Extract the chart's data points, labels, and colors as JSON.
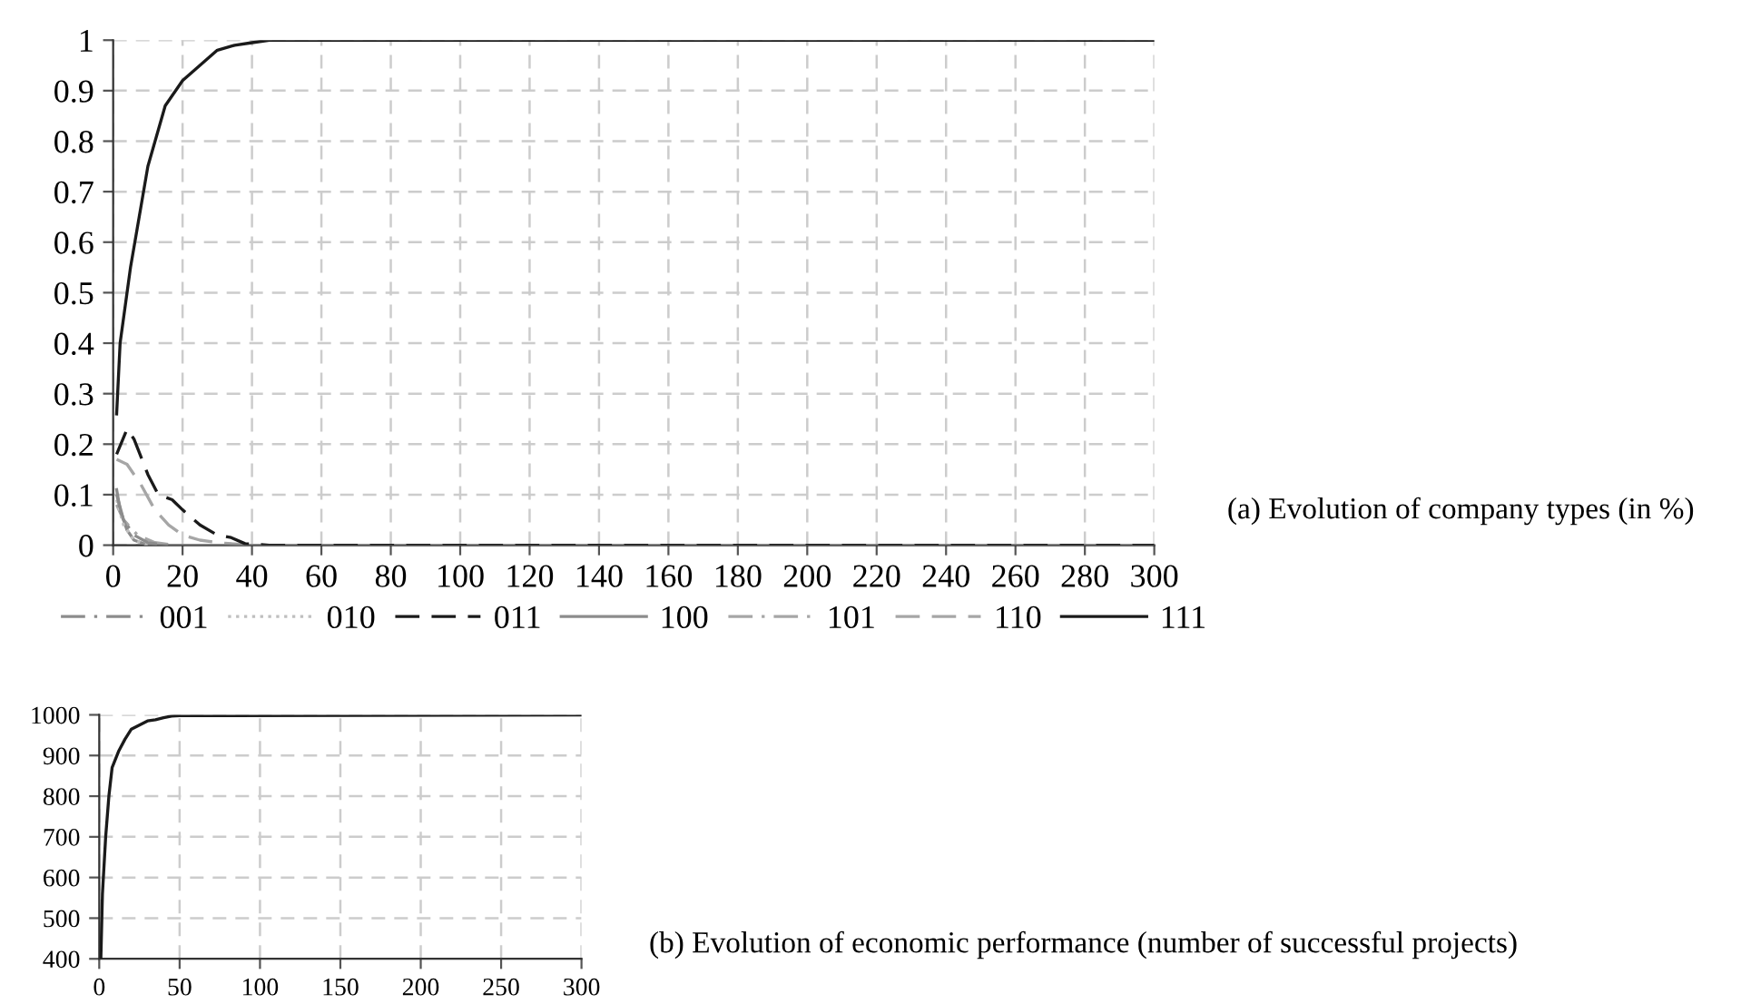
{
  "chart_data": [
    {
      "type": "line",
      "annotations": [
        "(a) Evolution of company types (in %)"
      ],
      "xlim": [
        0,
        300
      ],
      "xticks": [
        0,
        20,
        40,
        60,
        80,
        100,
        120,
        140,
        160,
        180,
        200,
        220,
        240,
        260,
        280,
        300
      ],
      "ylim": [
        0,
        1
      ],
      "yticks": [
        0,
        0.1,
        0.2,
        0.3,
        0.4,
        0.5,
        0.6,
        0.7,
        0.8,
        0.9,
        1
      ],
      "grid": true,
      "legend": "bottom",
      "series": [
        {
          "name": "001",
          "color": "#8c8c8c",
          "line_style": "dashdot",
          "x": [
            1,
            3,
            6,
            10,
            15
          ],
          "values": [
            0.1,
            0.05,
            0.02,
            0.005,
            0
          ]
        },
        {
          "name": "010",
          "color": "#bfbfbf",
          "line_style": "dotted",
          "x": [
            1,
            3,
            6,
            10
          ],
          "values": [
            0.09,
            0.04,
            0.01,
            0
          ]
        },
        {
          "name": "011",
          "color": "#1a1a1a",
          "line_style": "dashed",
          "x": [
            1,
            4,
            6,
            10,
            13,
            17,
            20,
            25,
            30,
            34,
            38,
            45,
            300
          ],
          "values": [
            0.18,
            0.23,
            0.21,
            0.14,
            0.1,
            0.09,
            0.07,
            0.04,
            0.02,
            0.015,
            0.003,
            0,
            0
          ]
        },
        {
          "name": "100",
          "color": "#8c8c8c",
          "line_style": "solid",
          "x": [
            1,
            2,
            4,
            6,
            10,
            300
          ],
          "values": [
            0.11,
            0.07,
            0.03,
            0.01,
            0,
            0
          ]
        },
        {
          "name": "101",
          "color": "#a6a6a6",
          "line_style": "dashdot",
          "x": [
            1,
            3,
            7,
            12,
            18
          ],
          "values": [
            0.08,
            0.05,
            0.02,
            0.005,
            0
          ]
        },
        {
          "name": "110",
          "color": "#a6a6a6",
          "line_style": "dashed",
          "x": [
            1,
            4,
            8,
            12,
            16,
            20,
            25,
            30,
            40,
            300
          ],
          "values": [
            0.17,
            0.16,
            0.12,
            0.07,
            0.04,
            0.02,
            0.01,
            0.005,
            0,
            0
          ]
        },
        {
          "name": "111",
          "color": "#1a1a1a",
          "line_style": "solid",
          "x": [
            1,
            2,
            5,
            10,
            15,
            20,
            25,
            30,
            35,
            40,
            45,
            300
          ],
          "values": [
            0.26,
            0.4,
            0.55,
            0.75,
            0.87,
            0.92,
            0.95,
            0.98,
            0.99,
            0.995,
            1,
            1
          ]
        }
      ]
    },
    {
      "type": "line",
      "annotations": [
        "(b) Evolution of economic performance (number of successful projects)"
      ],
      "xlim": [
        0,
        300
      ],
      "xticks": [
        0,
        50,
        100,
        150,
        200,
        250,
        300
      ],
      "ylim": [
        400,
        1000
      ],
      "yticks": [
        400,
        500,
        600,
        700,
        800,
        900,
        1000
      ],
      "grid": true,
      "series": [
        {
          "color": "#1a1a1a",
          "line_style": "solid",
          "x": [
            1,
            2,
            4,
            6,
            8,
            12,
            16,
            20,
            25,
            30,
            35,
            40,
            45,
            50,
            300
          ],
          "values": [
            400,
            560,
            700,
            800,
            870,
            910,
            940,
            965,
            975,
            985,
            988,
            993,
            997,
            998,
            1000
          ]
        }
      ]
    }
  ]
}
